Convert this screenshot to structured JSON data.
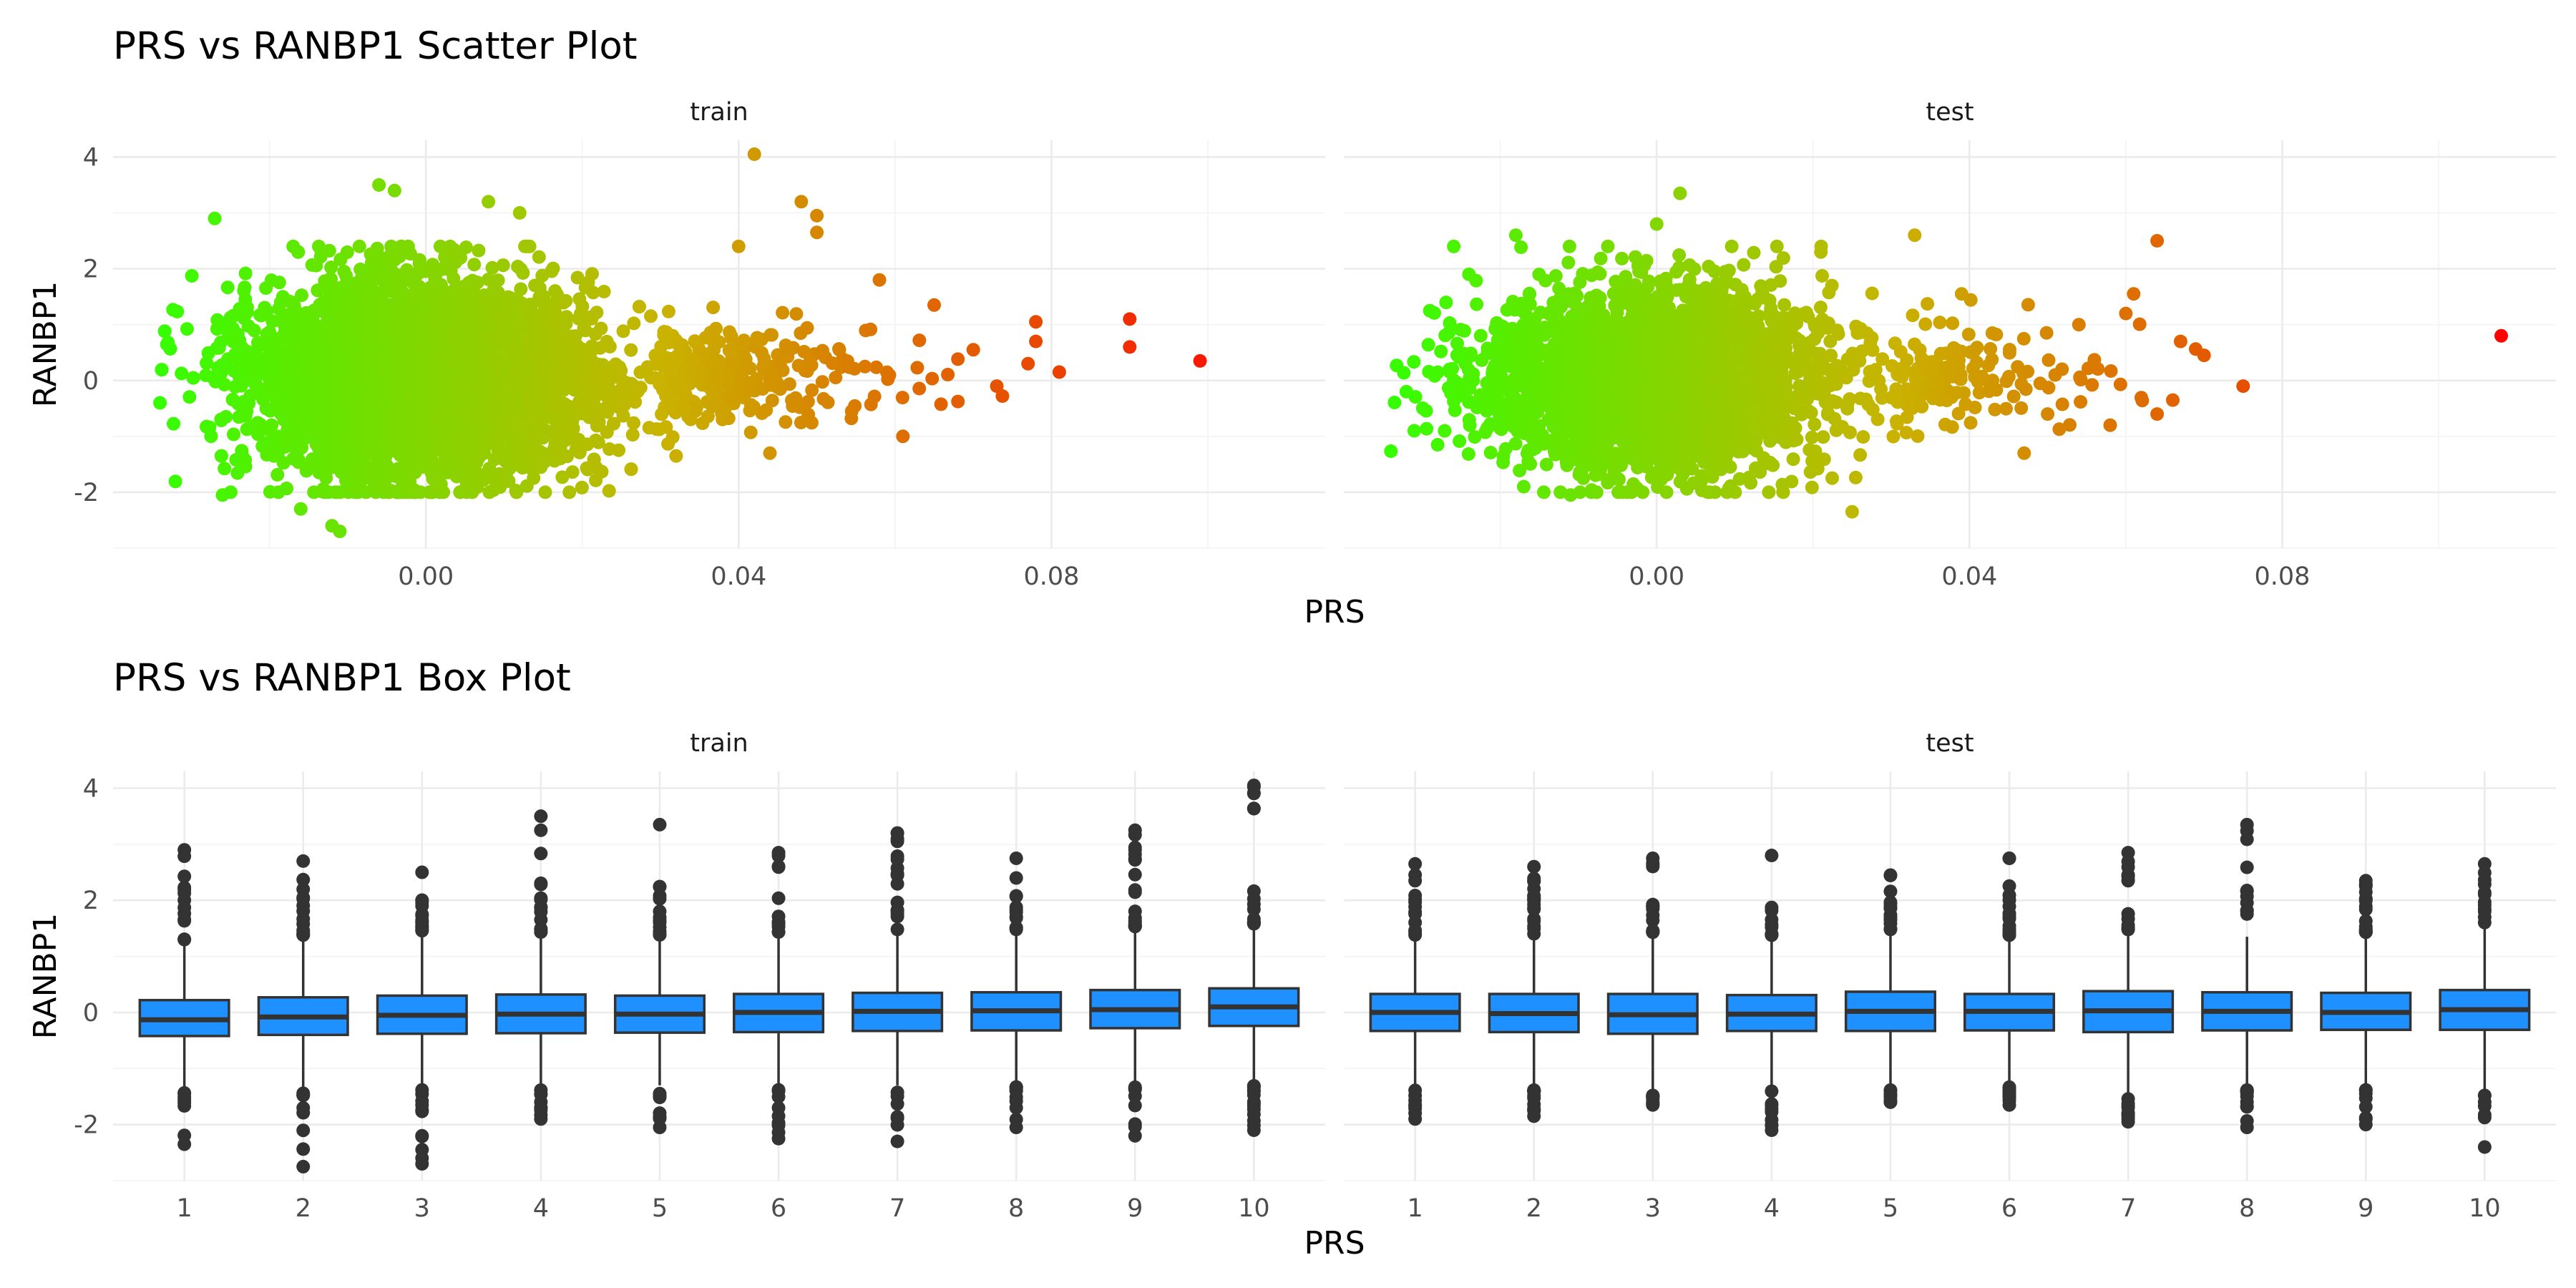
{
  "chart_data": [
    {
      "type": "scatter",
      "title": "PRS vs RANBP1 Scatter Plot",
      "xlabel": "PRS",
      "ylabel": "RANBP1",
      "facets": [
        "train",
        "test"
      ],
      "xlim": [
        -0.04,
        0.115
      ],
      "ylim": [
        -3,
        4.3
      ],
      "x_ticks": [
        0.0,
        0.04,
        0.08
      ],
      "x_tick_labels": [
        "0.00",
        "0.04",
        "0.08"
      ],
      "y_ticks": [
        -2,
        0,
        2,
        4
      ],
      "y_tick_labels": [
        "-2",
        "0",
        "2",
        "4"
      ],
      "color_scale": {
        "low": "#33ff00",
        "mid": "#c9b300",
        "high": "#ff0000",
        "maps": "PRS"
      },
      "grid": true,
      "series": [
        {
          "facet": "train",
          "notable_points": [
            {
              "x": 0.099,
              "y": 0.35
            },
            {
              "x": 0.09,
              "y": 1.1
            },
            {
              "x": 0.09,
              "y": 0.6
            },
            {
              "x": 0.081,
              "y": 0.15
            },
            {
              "x": 0.078,
              "y": 1.05
            },
            {
              "x": 0.078,
              "y": 0.7
            },
            {
              "x": 0.077,
              "y": 0.3
            },
            {
              "x": 0.073,
              "y": -0.1
            },
            {
              "x": 0.07,
              "y": 0.55
            },
            {
              "x": 0.065,
              "y": 1.35
            },
            {
              "x": 0.061,
              "y": -1.0
            },
            {
              "x": 0.058,
              "y": 1.8
            },
            {
              "x": 0.05,
              "y": 2.95
            },
            {
              "x": 0.05,
              "y": 2.65
            },
            {
              "x": 0.048,
              "y": 3.2
            },
            {
              "x": 0.042,
              "y": 4.05
            },
            {
              "x": 0.04,
              "y": 2.4
            },
            {
              "x": 0.044,
              "y": -1.3
            },
            {
              "x": 0.032,
              "y": -1.35
            },
            {
              "x": 0.008,
              "y": 3.2
            },
            {
              "x": 0.012,
              "y": 3.0
            },
            {
              "x": -0.006,
              "y": 3.5
            },
            {
              "x": -0.004,
              "y": 3.4
            },
            {
              "x": -0.027,
              "y": 2.9
            },
            {
              "x": -0.026,
              "y": -2.05
            },
            {
              "x": -0.011,
              "y": -2.7
            },
            {
              "x": -0.012,
              "y": -2.6
            },
            {
              "x": -0.016,
              "y": -2.3
            },
            {
              "x": -0.034,
              "y": -0.4
            }
          ]
        },
        {
          "facet": "test",
          "notable_points": [
            {
              "x": 0.108,
              "y": 0.8
            },
            {
              "x": 0.075,
              "y": -0.1
            },
            {
              "x": 0.07,
              "y": 0.45
            },
            {
              "x": 0.067,
              "y": 0.7
            },
            {
              "x": 0.066,
              "y": -0.35
            },
            {
              "x": 0.064,
              "y": 2.5
            },
            {
              "x": 0.064,
              "y": -0.6
            },
            {
              "x": 0.061,
              "y": 1.55
            },
            {
              "x": 0.06,
              "y": 1.2
            },
            {
              "x": 0.058,
              "y": -0.8
            },
            {
              "x": 0.054,
              "y": 1.0
            },
            {
              "x": 0.05,
              "y": -0.6
            },
            {
              "x": 0.047,
              "y": -1.3
            },
            {
              "x": 0.039,
              "y": 1.55
            },
            {
              "x": 0.033,
              "y": 2.6
            },
            {
              "x": 0.025,
              "y": -2.35
            },
            {
              "x": 0.021,
              "y": 2.3
            },
            {
              "x": 0.003,
              "y": 3.35
            },
            {
              "x": 0.0,
              "y": 2.8
            },
            {
              "x": -0.018,
              "y": 2.6
            },
            {
              "x": -0.024,
              "y": 1.9
            },
            {
              "x": -0.029,
              "y": 1.25
            },
            {
              "x": -0.031,
              "y": -0.9
            },
            {
              "x": -0.028,
              "y": -1.15
            },
            {
              "x": -0.017,
              "y": -1.9
            },
            {
              "x": -0.011,
              "y": -2.05
            },
            {
              "x": 0.009,
              "y": -2.0
            },
            {
              "x": -0.032,
              "y": -0.2
            }
          ]
        }
      ]
    },
    {
      "type": "box",
      "title": "PRS vs RANBP1 Box Plot",
      "xlabel": "PRS",
      "ylabel": "RANBP1",
      "facets": [
        "train",
        "test"
      ],
      "categories": [
        "1",
        "2",
        "3",
        "4",
        "5",
        "6",
        "7",
        "8",
        "9",
        "10"
      ],
      "ylim": [
        -3,
        4.3
      ],
      "y_ticks": [
        -2,
        0,
        2,
        4
      ],
      "y_tick_labels": [
        "-2",
        "0",
        "2",
        "4"
      ],
      "fill": "#1e90ff",
      "grid": true,
      "series": [
        {
          "facet": "train",
          "boxes": [
            {
              "q1": -0.42,
              "median": -0.13,
              "q3": 0.22,
              "whisker_low": -1.35,
              "whisker_high": 1.2,
              "out_max": 2.9,
              "out_min": -2.35
            },
            {
              "q1": -0.4,
              "median": -0.08,
              "q3": 0.27,
              "whisker_low": -1.35,
              "whisker_high": 1.3,
              "out_max": 2.7,
              "out_min": -2.75
            },
            {
              "q1": -0.38,
              "median": -0.05,
              "q3": 0.3,
              "whisker_low": -1.3,
              "whisker_high": 1.35,
              "out_max": 2.5,
              "out_min": -2.7
            },
            {
              "q1": -0.37,
              "median": -0.03,
              "q3": 0.32,
              "whisker_low": -1.3,
              "whisker_high": 1.35,
              "out_max": 3.5,
              "out_min": -1.9
            },
            {
              "q1": -0.36,
              "median": -0.03,
              "q3": 0.3,
              "whisker_low": -1.3,
              "whisker_high": 1.3,
              "out_max": 3.35,
              "out_min": -2.05
            },
            {
              "q1": -0.35,
              "median": 0.0,
              "q3": 0.33,
              "whisker_low": -1.3,
              "whisker_high": 1.35,
              "out_max": 2.85,
              "out_min": -2.25
            },
            {
              "q1": -0.33,
              "median": 0.02,
              "q3": 0.35,
              "whisker_low": -1.3,
              "whisker_high": 1.4,
              "out_max": 3.2,
              "out_min": -2.3
            },
            {
              "q1": -0.32,
              "median": 0.03,
              "q3": 0.36,
              "whisker_low": -1.25,
              "whisker_high": 1.4,
              "out_max": 2.75,
              "out_min": -2.05
            },
            {
              "q1": -0.28,
              "median": 0.05,
              "q3": 0.4,
              "whisker_low": -1.25,
              "whisker_high": 1.45,
              "out_max": 3.25,
              "out_min": -2.2
            },
            {
              "q1": -0.24,
              "median": 0.1,
              "q3": 0.43,
              "whisker_low": -1.2,
              "whisker_high": 1.5,
              "out_max": 4.05,
              "out_min": -2.1
            }
          ]
        },
        {
          "facet": "test",
          "boxes": [
            {
              "q1": -0.33,
              "median": 0.0,
              "q3": 0.33,
              "whisker_low": -1.3,
              "whisker_high": 1.3,
              "out_max": 2.65,
              "out_min": -1.9
            },
            {
              "q1": -0.35,
              "median": -0.02,
              "q3": 0.33,
              "whisker_low": -1.3,
              "whisker_high": 1.3,
              "out_max": 2.6,
              "out_min": -1.85
            },
            {
              "q1": -0.38,
              "median": -0.04,
              "q3": 0.33,
              "whisker_low": -1.4,
              "whisker_high": 1.35,
              "out_max": 2.75,
              "out_min": -1.65
            },
            {
              "q1": -0.33,
              "median": -0.03,
              "q3": 0.31,
              "whisker_low": -1.3,
              "whisker_high": 1.3,
              "out_max": 2.8,
              "out_min": -2.1
            },
            {
              "q1": -0.33,
              "median": 0.02,
              "q3": 0.37,
              "whisker_low": -1.3,
              "whisker_high": 1.4,
              "out_max": 2.45,
              "out_min": -1.6
            },
            {
              "q1": -0.32,
              "median": 0.02,
              "q3": 0.33,
              "whisker_low": -1.25,
              "whisker_high": 1.3,
              "out_max": 2.75,
              "out_min": -1.65
            },
            {
              "q1": -0.35,
              "median": 0.03,
              "q3": 0.38,
              "whisker_low": -1.45,
              "whisker_high": 1.4,
              "out_max": 2.85,
              "out_min": -1.95
            },
            {
              "q1": -0.32,
              "median": 0.02,
              "q3": 0.36,
              "whisker_low": -1.3,
              "whisker_high": 1.35,
              "out_max": 3.35,
              "out_min": -2.05
            },
            {
              "q1": -0.31,
              "median": 0.0,
              "q3": 0.35,
              "whisker_low": -1.3,
              "whisker_high": 1.35,
              "out_max": 2.35,
              "out_min": -2.0
            },
            {
              "q1": -0.31,
              "median": 0.05,
              "q3": 0.4,
              "whisker_low": -1.4,
              "whisker_high": 1.5,
              "out_max": 2.65,
              "out_min": -2.4
            }
          ]
        }
      ]
    }
  ]
}
